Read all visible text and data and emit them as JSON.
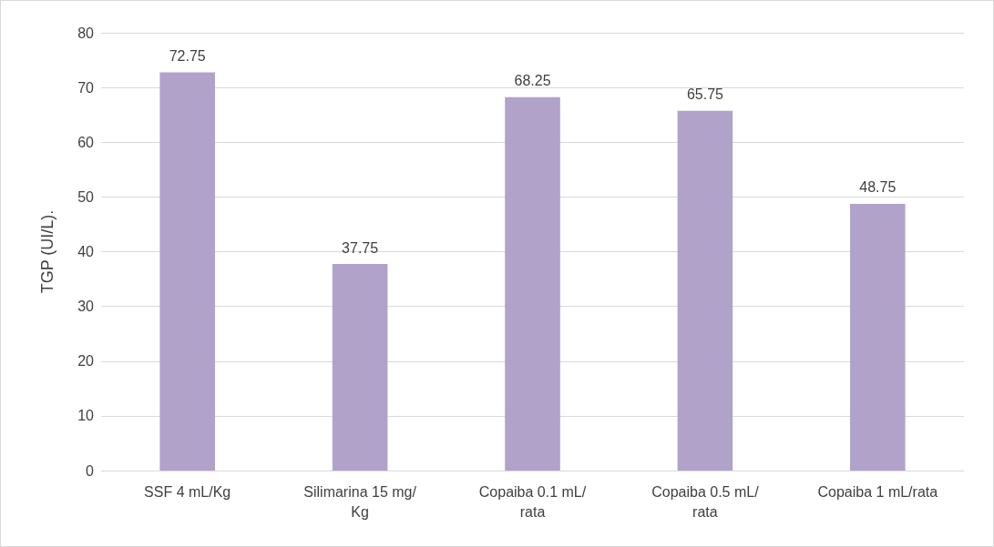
{
  "chart_data": {
    "type": "bar",
    "ylabel": "TGP (UI/L).",
    "categories": [
      "SSF 4 mL/Kg",
      "Silimarina 15 mg/Kg",
      "Copaiba 0.1 mL/rata",
      "Copaiba 0.5 mL/rata",
      "Copaiba 1 mL/rata"
    ],
    "values": [
      72.75,
      37.75,
      68.25,
      65.75,
      48.75
    ],
    "color": "#b1a2ca",
    "ylim": [
      0,
      80
    ],
    "yticks": [
      0,
      10,
      20,
      30,
      40,
      50,
      60,
      70,
      80
    ],
    "grid": "y",
    "data_labels": true
  }
}
